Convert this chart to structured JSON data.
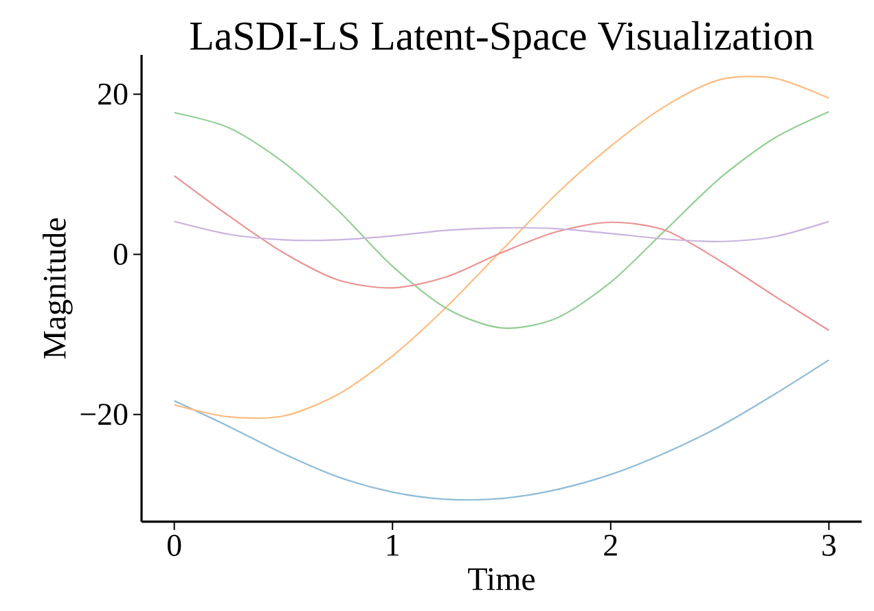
{
  "chart_data": {
    "type": "line",
    "title": "LaSDI-LS Latent-Space Visualization",
    "xlabel": "Time",
    "ylabel": "Magnitude",
    "x": [
      0,
      0.25,
      0.5,
      0.75,
      1.0,
      1.25,
      1.5,
      1.75,
      2.0,
      2.25,
      2.5,
      2.75,
      3.0
    ],
    "series": [
      {
        "color": "#8fbbd9",
        "values": [
          -18.3,
          -21.5,
          -24.9,
          -27.8,
          -29.7,
          -30.6,
          -30.5,
          -29.4,
          -27.5,
          -24.8,
          -21.5,
          -17.5,
          -13.2
        ]
      },
      {
        "color": "#ffbb7f",
        "values": [
          -18.8,
          -20.3,
          -20.2,
          -17.5,
          -12.7,
          -6.5,
          0.5,
          7.5,
          13.5,
          18.5,
          21.8,
          22.0,
          19.5
        ]
      },
      {
        "color": "#94cf94",
        "values": [
          17.7,
          15.8,
          11.5,
          5.5,
          -1.5,
          -6.8,
          -9.2,
          -8.0,
          -3.5,
          3.0,
          9.5,
          14.5,
          17.8
        ]
      },
      {
        "color": "#eb9393",
        "values": [
          9.8,
          4.8,
          0.2,
          -3.2,
          -4.2,
          -2.8,
          0.2,
          2.8,
          4.0,
          3.0,
          -0.8,
          -5.2,
          -9.5
        ]
      },
      {
        "color": "#cab3de",
        "values": [
          4.1,
          2.5,
          1.8,
          1.8,
          2.3,
          3.0,
          3.3,
          3.2,
          2.6,
          1.9,
          1.6,
          2.2,
          4.1
        ]
      }
    ],
    "xlim": [
      -0.15,
      3.15
    ],
    "ylim": [
      -33.4,
      24.9
    ],
    "xticks": [
      0,
      1,
      2,
      3
    ],
    "yticks": [
      {
        "value": -20,
        "label": "−20"
      },
      0,
      20
    ],
    "grid": false,
    "marker": "none",
    "line_style": "solid"
  }
}
